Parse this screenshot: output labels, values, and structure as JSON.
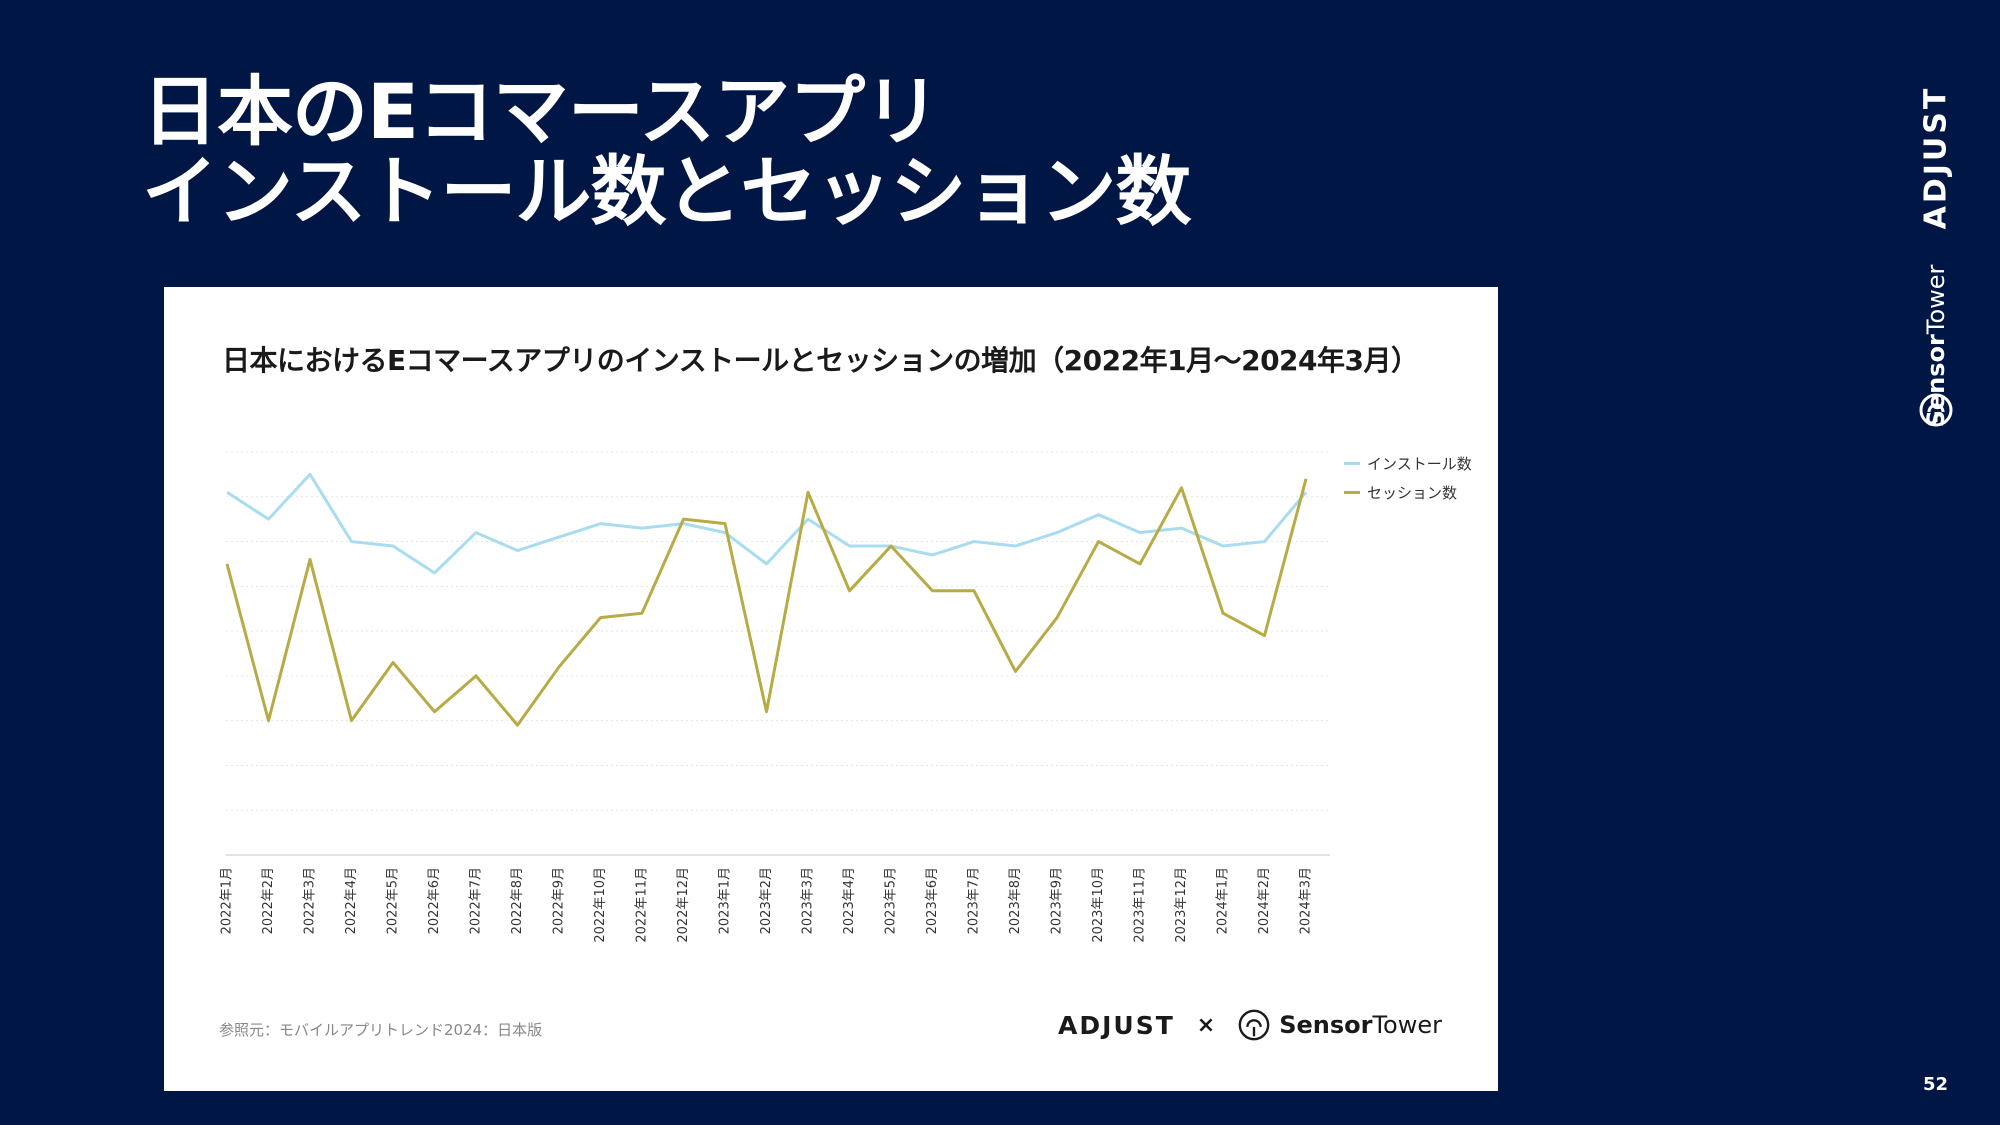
{
  "slide": {
    "title_line1": "日本のEコマースアプリ",
    "title_line2": "インストール数とセッション数",
    "page_number": "52",
    "side_brand_adjust": "ADJUST",
    "side_brand_sensor_bold": "Sensor",
    "side_brand_sensor_light": "Tower"
  },
  "card": {
    "source": "参照元：モバイルアプリトレンド2024：日本版",
    "brand_adjust": "ADJUST",
    "brand_x": "×",
    "brand_sensor_bold": "Sensor",
    "brand_sensor_light": "Tower"
  },
  "colors": {
    "background": "#001746",
    "installs": "#a8dcee",
    "sessions": "#b8ab45"
  },
  "chart_data": {
    "type": "line",
    "title": "日本におけるEコマースアプリのインストールとセッションの増加（2022年1月～2024年3月）",
    "categories": [
      "2022年1月",
      "2022年2月",
      "2022年3月",
      "2022年4月",
      "2022年5月",
      "2022年6月",
      "2022年7月",
      "2022年8月",
      "2022年9月",
      "2022年10月",
      "2022年11月",
      "2022年12月",
      "2023年1月",
      "2023年2月",
      "2023年3月",
      "2023年4月",
      "2023年5月",
      "2023年6月",
      "2023年7月",
      "2023年8月",
      "2023年9月",
      "2023年10月",
      "2023年11月",
      "2023年12月",
      "2024年1月",
      "2024年2月",
      "2024年3月"
    ],
    "ylim": [
      0,
      9
    ],
    "grid": true,
    "legend_position": "right",
    "series": [
      {
        "name": "インストール数",
        "values": [
          8.1,
          7.5,
          8.5,
          7.0,
          6.9,
          6.3,
          7.2,
          6.8,
          7.1,
          7.4,
          7.3,
          7.4,
          7.2,
          6.5,
          7.5,
          6.9,
          6.9,
          6.7,
          7.0,
          6.9,
          7.2,
          7.6,
          7.2,
          7.3,
          6.9,
          7.0,
          8.1
        ]
      },
      {
        "name": "セッション数",
        "values": [
          6.5,
          3.0,
          6.6,
          3.0,
          4.3,
          3.2,
          4.0,
          2.9,
          4.2,
          5.3,
          5.4,
          7.5,
          7.4,
          3.2,
          8.1,
          5.9,
          6.9,
          5.9,
          5.9,
          4.1,
          5.3,
          7.0,
          6.5,
          8.2,
          5.4,
          4.9,
          8.4
        ]
      }
    ]
  }
}
